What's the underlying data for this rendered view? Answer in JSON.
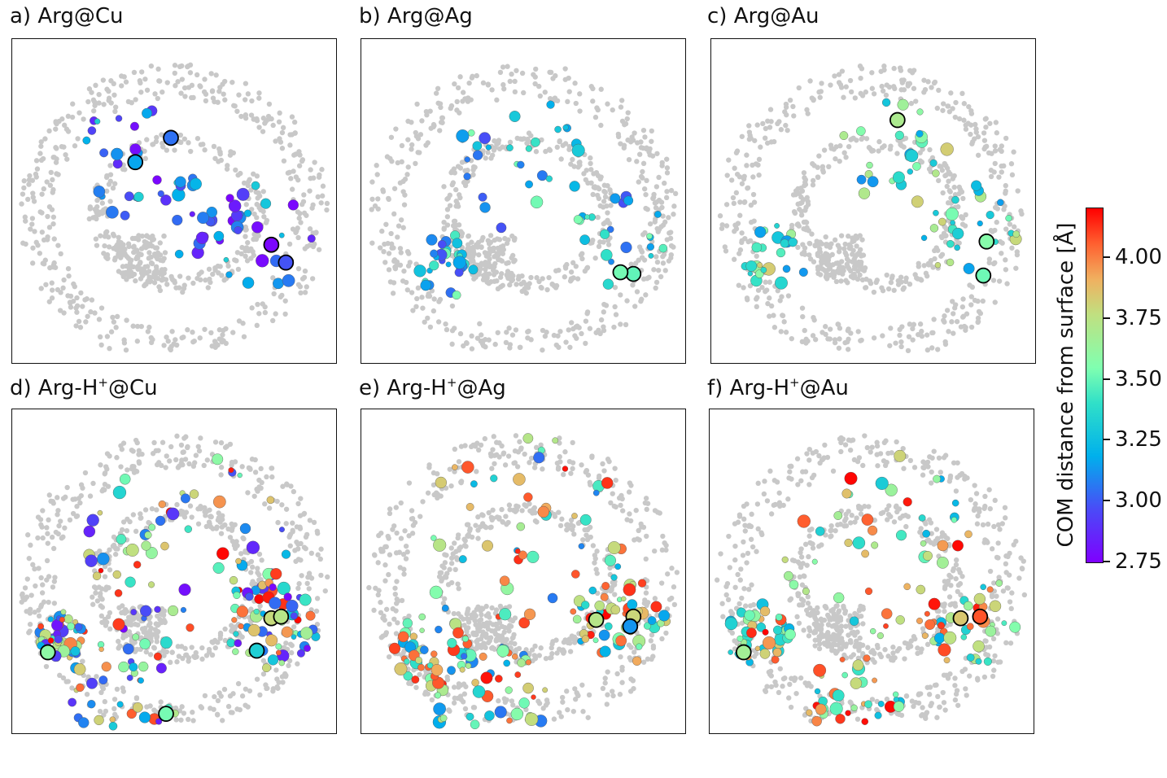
{
  "chart_data": [
    {
      "type": "scatter",
      "title": "a) Arg@Cu",
      "title_prefix": "a) Arg",
      "title_sup": "",
      "title_suffix": "@Cu",
      "colors_range": "low (2.75–3.25)"
    },
    {
      "type": "scatter",
      "title": "b) Arg@Ag",
      "title_prefix": "b) Arg",
      "title_sup": "",
      "title_suffix": "@Ag",
      "colors_range": "low-mid (2.9–3.4)"
    },
    {
      "type": "scatter",
      "title": "c) Arg@Au",
      "title_prefix": "c) Arg",
      "title_sup": "",
      "title_suffix": "@Au",
      "colors_range": "mid (3.0–3.8)"
    },
    {
      "type": "scatter",
      "title": "d) Arg-H+@Cu",
      "title_prefix": "d) Arg-H",
      "title_sup": "+",
      "title_suffix": "@Cu",
      "colors_range": "full (2.75–4.1)"
    },
    {
      "type": "scatter",
      "title": "e) Arg-H+@Ag",
      "title_prefix": "e) Arg-H",
      "title_sup": "+",
      "title_suffix": "@Ag",
      "colors_range": "mid-high (3.0–4.2)"
    },
    {
      "type": "scatter",
      "title": "f) Arg-H+@Au",
      "title_prefix": "f) Arg-H",
      "title_sup": "+",
      "title_suffix": "@Au",
      "colors_range": "mid-high (3.1–4.2)"
    }
  ],
  "colorbar": {
    "label": "COM distance from surface [Å]",
    "ticks": [
      "2.75",
      "3.00",
      "3.25",
      "3.50",
      "3.75",
      "4.00"
    ],
    "min": 2.75,
    "max": 4.2,
    "colormap": "rainbow"
  },
  "colors": {
    "background_points": "#c8c8c8",
    "frame": "#111111"
  }
}
